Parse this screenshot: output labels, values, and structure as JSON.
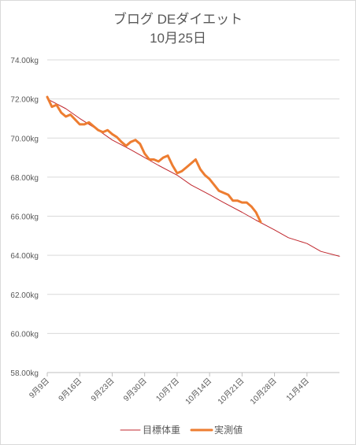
{
  "chart_data": {
    "type": "line",
    "title": "ブログ DEダイエット",
    "subtitle": "10月25日",
    "xlabel": "",
    "ylabel": "",
    "ylim": [
      58,
      74
    ],
    "y_tick_labels": [
      "58.00kg",
      "60.00kg",
      "62.00kg",
      "64.00kg",
      "66.00kg",
      "68.00kg",
      "70.00kg",
      "72.00kg",
      "74.00kg"
    ],
    "y_ticks": [
      58,
      60,
      62,
      64,
      66,
      68,
      70,
      72,
      74
    ],
    "x_start": "2018-09-09",
    "x_end": "2018-11-11",
    "x_tick_labels": [
      "9月9日",
      "9月16日",
      "9月23日",
      "9月30日",
      "10月7日",
      "10月14日",
      "10月21日",
      "10月28日",
      "11月4日"
    ],
    "x_ticks": [
      "2018-09-09",
      "2018-09-16",
      "2018-09-23",
      "2018-09-30",
      "2018-10-07",
      "2018-10-14",
      "2018-10-21",
      "2018-10-28",
      "2018-11-04"
    ],
    "grid": true,
    "legend": "bottom",
    "series": [
      {
        "name": "目標体重",
        "color": "#c0272d",
        "style": "thin",
        "x": [
          "2018-09-09",
          "2018-09-13",
          "2018-09-16",
          "2018-09-20",
          "2018-09-23",
          "2018-09-27",
          "2018-09-30",
          "2018-10-03",
          "2018-10-07",
          "2018-10-10",
          "2018-10-14",
          "2018-10-17",
          "2018-10-21",
          "2018-10-24",
          "2018-10-28",
          "2018-10-31",
          "2018-11-04",
          "2018-11-07",
          "2018-11-11"
        ],
        "values": [
          72.0,
          71.5,
          71.0,
          70.4,
          69.9,
          69.4,
          69.0,
          68.6,
          68.1,
          67.6,
          67.1,
          66.7,
          66.2,
          65.8,
          65.3,
          64.9,
          64.6,
          64.2,
          63.95
        ]
      },
      {
        "name": "実測値",
        "color": "#ed7d31",
        "style": "thick",
        "x": [
          "2018-09-09",
          "2018-09-10",
          "2018-09-11",
          "2018-09-12",
          "2018-09-13",
          "2018-09-14",
          "2018-09-15",
          "2018-09-16",
          "2018-09-17",
          "2018-09-18",
          "2018-09-19",
          "2018-09-20",
          "2018-09-21",
          "2018-09-22",
          "2018-09-23",
          "2018-09-24",
          "2018-09-25",
          "2018-09-26",
          "2018-09-27",
          "2018-09-28",
          "2018-09-29",
          "2018-09-30",
          "2018-10-01",
          "2018-10-02",
          "2018-10-03",
          "2018-10-04",
          "2018-10-05",
          "2018-10-06",
          "2018-10-07",
          "2018-10-08",
          "2018-10-09",
          "2018-10-10",
          "2018-10-11",
          "2018-10-12",
          "2018-10-13",
          "2018-10-14",
          "2018-10-15",
          "2018-10-16",
          "2018-10-17",
          "2018-10-18",
          "2018-10-19",
          "2018-10-20",
          "2018-10-21",
          "2018-10-22",
          "2018-10-23",
          "2018-10-24",
          "2018-10-25"
        ],
        "values": [
          72.1,
          71.6,
          71.7,
          71.3,
          71.1,
          71.2,
          70.95,
          70.7,
          70.7,
          70.8,
          70.6,
          70.4,
          70.3,
          70.4,
          70.2,
          70.05,
          69.8,
          69.6,
          69.8,
          69.9,
          69.7,
          69.2,
          68.9,
          68.9,
          68.8,
          69.0,
          69.1,
          68.6,
          68.2,
          68.3,
          68.5,
          68.7,
          68.9,
          68.4,
          68.1,
          67.9,
          67.6,
          67.3,
          67.2,
          67.1,
          66.8,
          66.8,
          66.7,
          66.7,
          66.5,
          66.2,
          65.7
        ]
      }
    ]
  }
}
